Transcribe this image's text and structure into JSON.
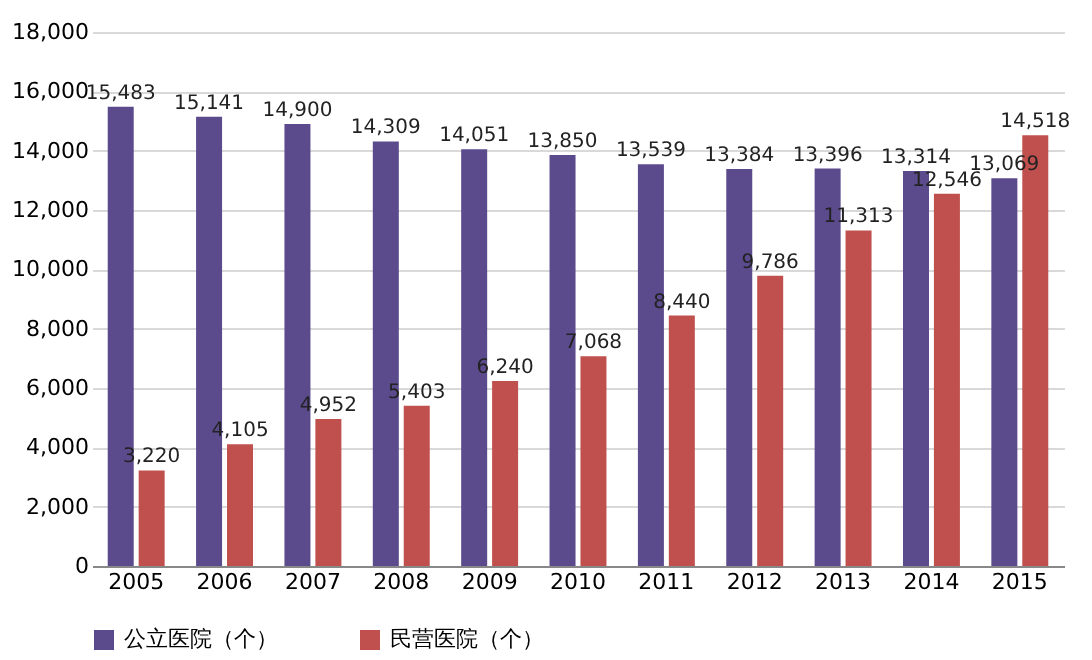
{
  "chart_data": {
    "type": "bar",
    "categories": [
      "2005",
      "2006",
      "2007",
      "2008",
      "2009",
      "2010",
      "2011",
      "2012",
      "2013",
      "2014",
      "2015"
    ],
    "series": [
      {
        "name": "公立医院（个）",
        "color": "#5b4a8c",
        "values": [
          15483,
          15141,
          14900,
          14309,
          14051,
          13850,
          13539,
          13384,
          13396,
          13314,
          13069
        ],
        "value_labels": [
          "15,483",
          "15,141",
          "14,900",
          "14,309",
          "14,051",
          "13,850",
          "13,539",
          "13,384",
          "13,396",
          "13,314",
          "13,069"
        ]
      },
      {
        "name": "民营医院（个）",
        "color": "#c0504d",
        "values": [
          3220,
          4105,
          4952,
          5403,
          6240,
          7068,
          8440,
          9786,
          11313,
          12546,
          14518
        ],
        "value_labels": [
          "3,220",
          "4,105",
          "4,952",
          "5,403",
          "6,240",
          "7,068",
          "8,440",
          "9,786",
          "11,313",
          "12,546",
          "14,518"
        ]
      }
    ],
    "ylim": [
      0,
      18000
    ],
    "yticks": [
      0,
      {
        "value": 2000,
        "label": "2,000"
      },
      {
        "value": 4000,
        "label": "4,000"
      },
      {
        "value": 6000,
        "label": "6,000"
      },
      {
        "value": 8000,
        "label": "8,000"
      },
      {
        "value": 10000,
        "label": "10,000"
      },
      {
        "value": 12000,
        "label": "12,000"
      },
      {
        "value": 14000,
        "label": "14,000"
      },
      {
        "value": 16000,
        "label": "16,000"
      },
      {
        "value": 18000,
        "label": "18,000"
      }
    ],
    "grid": "y",
    "legend": "bottom"
  }
}
